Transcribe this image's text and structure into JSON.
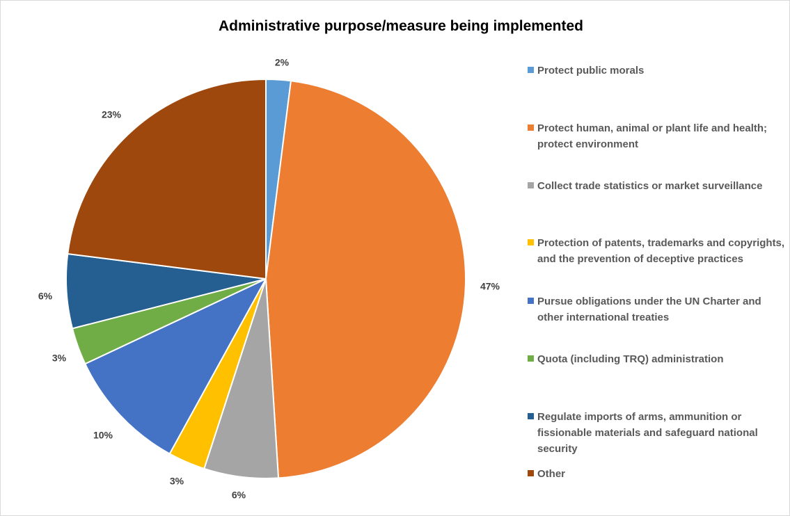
{
  "chart_data": {
    "type": "pie",
    "title": "Administrative purpose/measure being implemented",
    "categories": [
      "Protect public morals",
      "Protect human, animal or plant life and health; protect environment",
      "Collect trade statistics or market surveillance",
      "Protection of patents, trademarks and copyrights, and the prevention of deceptive practices",
      "Pursue obligations under the UN Charter and other international treaties",
      "Quota (including TRQ) administration",
      "Regulate imports of arms, ammunition or fissionable materials and safeguard national security",
      "Other"
    ],
    "values": [
      2,
      47,
      6,
      3,
      10,
      3,
      6,
      23
    ],
    "data_labels": [
      "2%",
      "47%",
      "6%",
      "3%",
      "10%",
      "3%",
      "6%",
      "23%"
    ],
    "colors": [
      "#5b9bd5",
      "#ed7d31",
      "#a5a5a5",
      "#ffc000",
      "#4472c4",
      "#70ad47",
      "#255e91",
      "#9e480e"
    ],
    "legend_position": "right",
    "start_angle": "top",
    "direction": "clockwise"
  }
}
